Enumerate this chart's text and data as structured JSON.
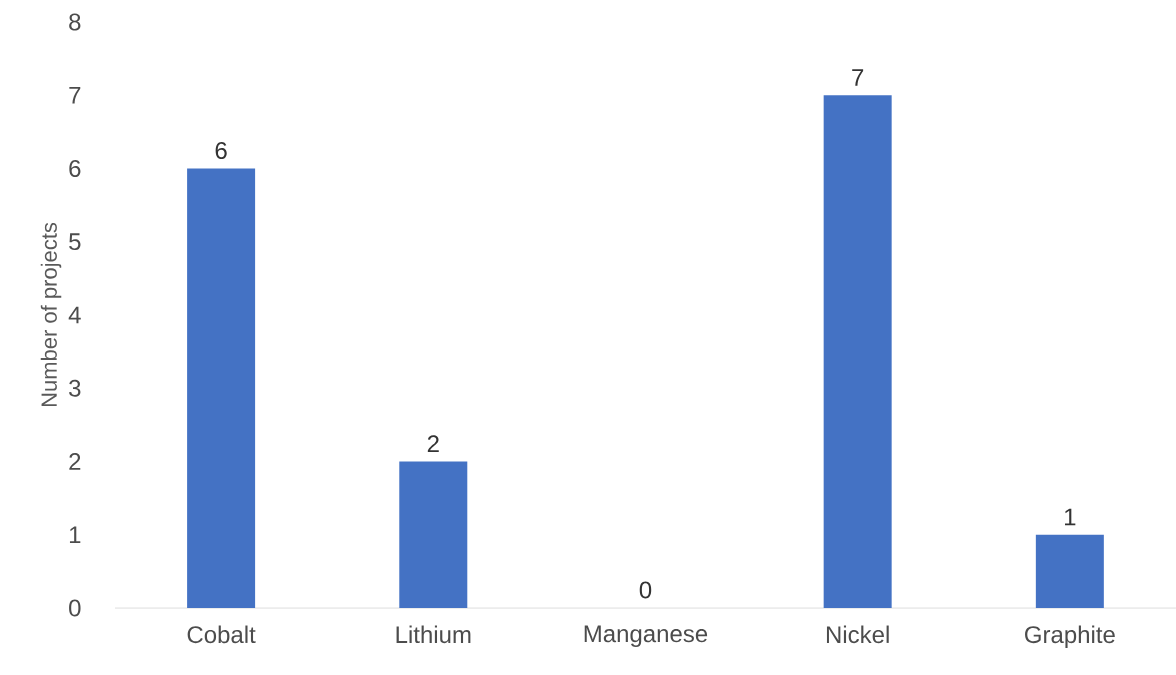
{
  "chart_data": {
    "type": "bar",
    "ylabel": "Number of projects",
    "categories": [
      "Cobalt",
      "Lithium",
      "Manganese",
      "Nickel",
      "Graphite"
    ],
    "values": [
      6,
      2,
      0,
      7,
      1
    ],
    "color": "#4472c4",
    "ylim": [
      0,
      8
    ],
    "yticks": [
      0,
      1,
      2,
      3,
      4,
      5,
      6,
      7,
      8
    ],
    "data_labels": true,
    "grid": false
  }
}
